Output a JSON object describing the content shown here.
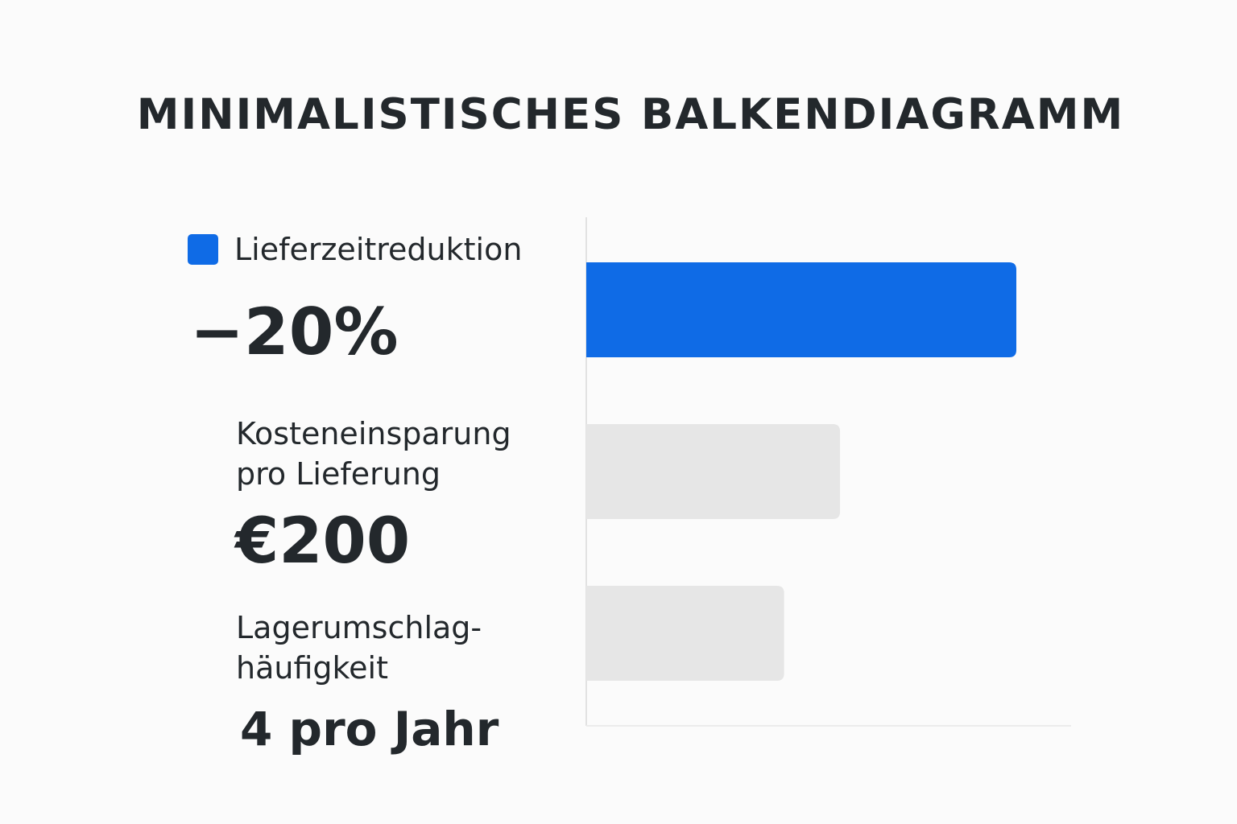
{
  "chart_data": {
    "type": "bar",
    "orientation": "horizontal",
    "title": "MINIMALISTISCHES BALKENDIAGRAMM",
    "legend": [
      {
        "label": "Lieferzeitreduktion",
        "color": "#0f6be6"
      }
    ],
    "bars": [
      {
        "label_lines": [],
        "value_text": "−20%",
        "relative_length": 1.0,
        "color": "#0f6be6"
      },
      {
        "label_lines": [
          "Kosteneinsparung",
          "pro Lieferung"
        ],
        "value_text": "€200",
        "relative_length": 0.59,
        "color": "#e6e6e6"
      },
      {
        "label_lines": [
          "Lagerumschlag-",
          "häufigkeit"
        ],
        "value_text": "4 pro Jahr",
        "relative_length": 0.46,
        "color": "#e6e6e6"
      }
    ],
    "grid": false,
    "legend_position": "top-left"
  }
}
